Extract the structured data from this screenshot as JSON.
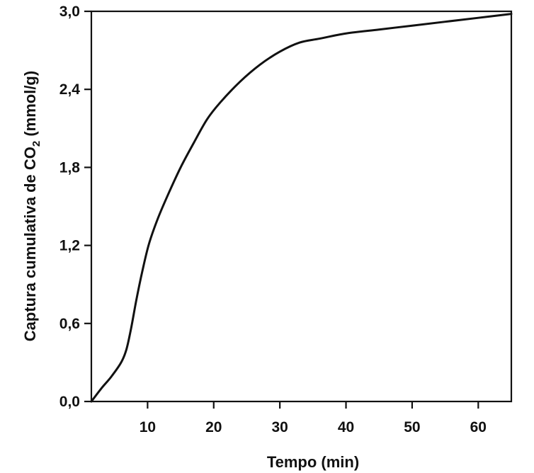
{
  "chart_data": {
    "type": "line",
    "title": "",
    "xlabel": "Tempo (min)",
    "ylabel": {
      "prefix": "Captura cumulativa de CO",
      "subscript": "2",
      "suffix": " (mmol/g)"
    },
    "xlim": [
      1.5,
      65
    ],
    "ylim": [
      0,
      3.0
    ],
    "x_ticks": [
      10,
      20,
      30,
      40,
      50,
      60
    ],
    "x_tick_labels": [
      "10",
      "20",
      "30",
      "40",
      "50",
      "60"
    ],
    "y_ticks": [
      0,
      0.6,
      1.2,
      1.8,
      2.4,
      3.0
    ],
    "y_tick_labels": [
      "0,0",
      "0,6",
      "1,2",
      "1,8",
      "2,4",
      "3,0"
    ],
    "grid": false,
    "legend": "none",
    "series": [
      {
        "color": "#111111",
        "x": [
          1.5,
          3,
          4.5,
          6,
          6.8,
          7.5,
          8.3,
          9.2,
          10.2,
          11.5,
          13,
          15,
          17,
          19,
          21,
          24,
          27,
          30,
          33,
          36,
          40,
          45,
          50,
          55,
          60,
          65
        ],
        "y": [
          0.0,
          0.1,
          0.19,
          0.3,
          0.4,
          0.56,
          0.78,
          1.0,
          1.21,
          1.4,
          1.58,
          1.8,
          1.99,
          2.17,
          2.3,
          2.46,
          2.59,
          2.69,
          2.76,
          2.79,
          2.83,
          2.86,
          2.89,
          2.92,
          2.95,
          2.98
        ]
      }
    ]
  }
}
